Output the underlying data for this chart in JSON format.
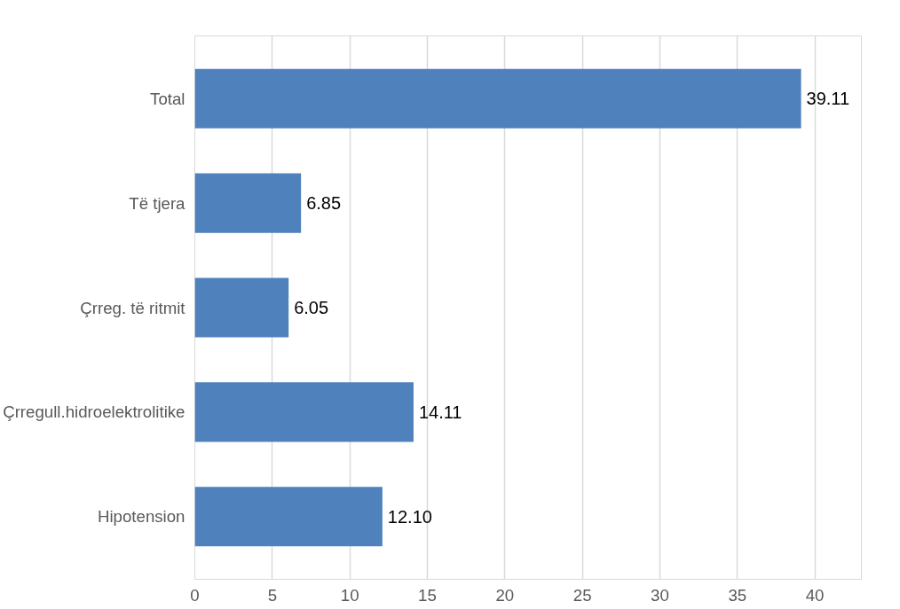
{
  "chart_data": {
    "type": "bar",
    "orientation": "horizontal",
    "categories": [
      "Total",
      "Të tjera",
      "Çrreg. të ritmit",
      "Çrregull.hidroelektrolitike",
      "Hipotension"
    ],
    "values": [
      39.11,
      6.85,
      6.05,
      14.11,
      12.1
    ],
    "value_labels": [
      "39.11",
      "6.85",
      "6.05",
      "14.11",
      "12.10"
    ],
    "color": "#4f81bd",
    "xlim": [
      0,
      43
    ],
    "xticks": [
      0,
      5,
      10,
      15,
      20,
      25,
      30,
      35,
      40
    ],
    "grid": "x"
  }
}
